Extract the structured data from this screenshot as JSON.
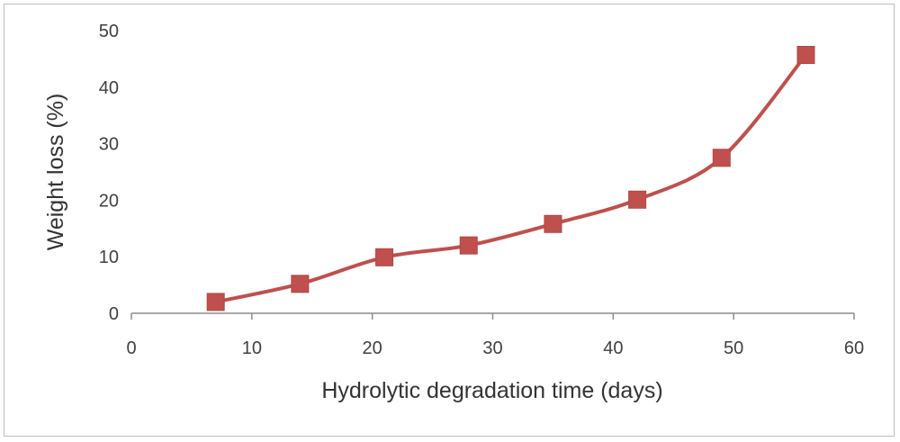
{
  "chart_data": {
    "type": "line",
    "title": "",
    "xlabel": "Hydrolytic degradation time (days)",
    "ylabel": "Weight loss (%)",
    "xlim": [
      0,
      60
    ],
    "ylim": [
      0,
      50
    ],
    "x_ticks": [
      0,
      10,
      20,
      30,
      40,
      50,
      60
    ],
    "y_ticks": [
      0,
      10,
      20,
      30,
      40,
      50
    ],
    "grid": false,
    "legend": "none",
    "marker": "square",
    "smooth": true,
    "series": [
      {
        "color": "#c0504d",
        "x": [
          7,
          14,
          21,
          28,
          35,
          42,
          49,
          56
        ],
        "y": [
          2,
          5.2,
          9.9,
          12,
          15.8,
          20.1,
          27.5,
          45.7
        ]
      }
    ]
  }
}
